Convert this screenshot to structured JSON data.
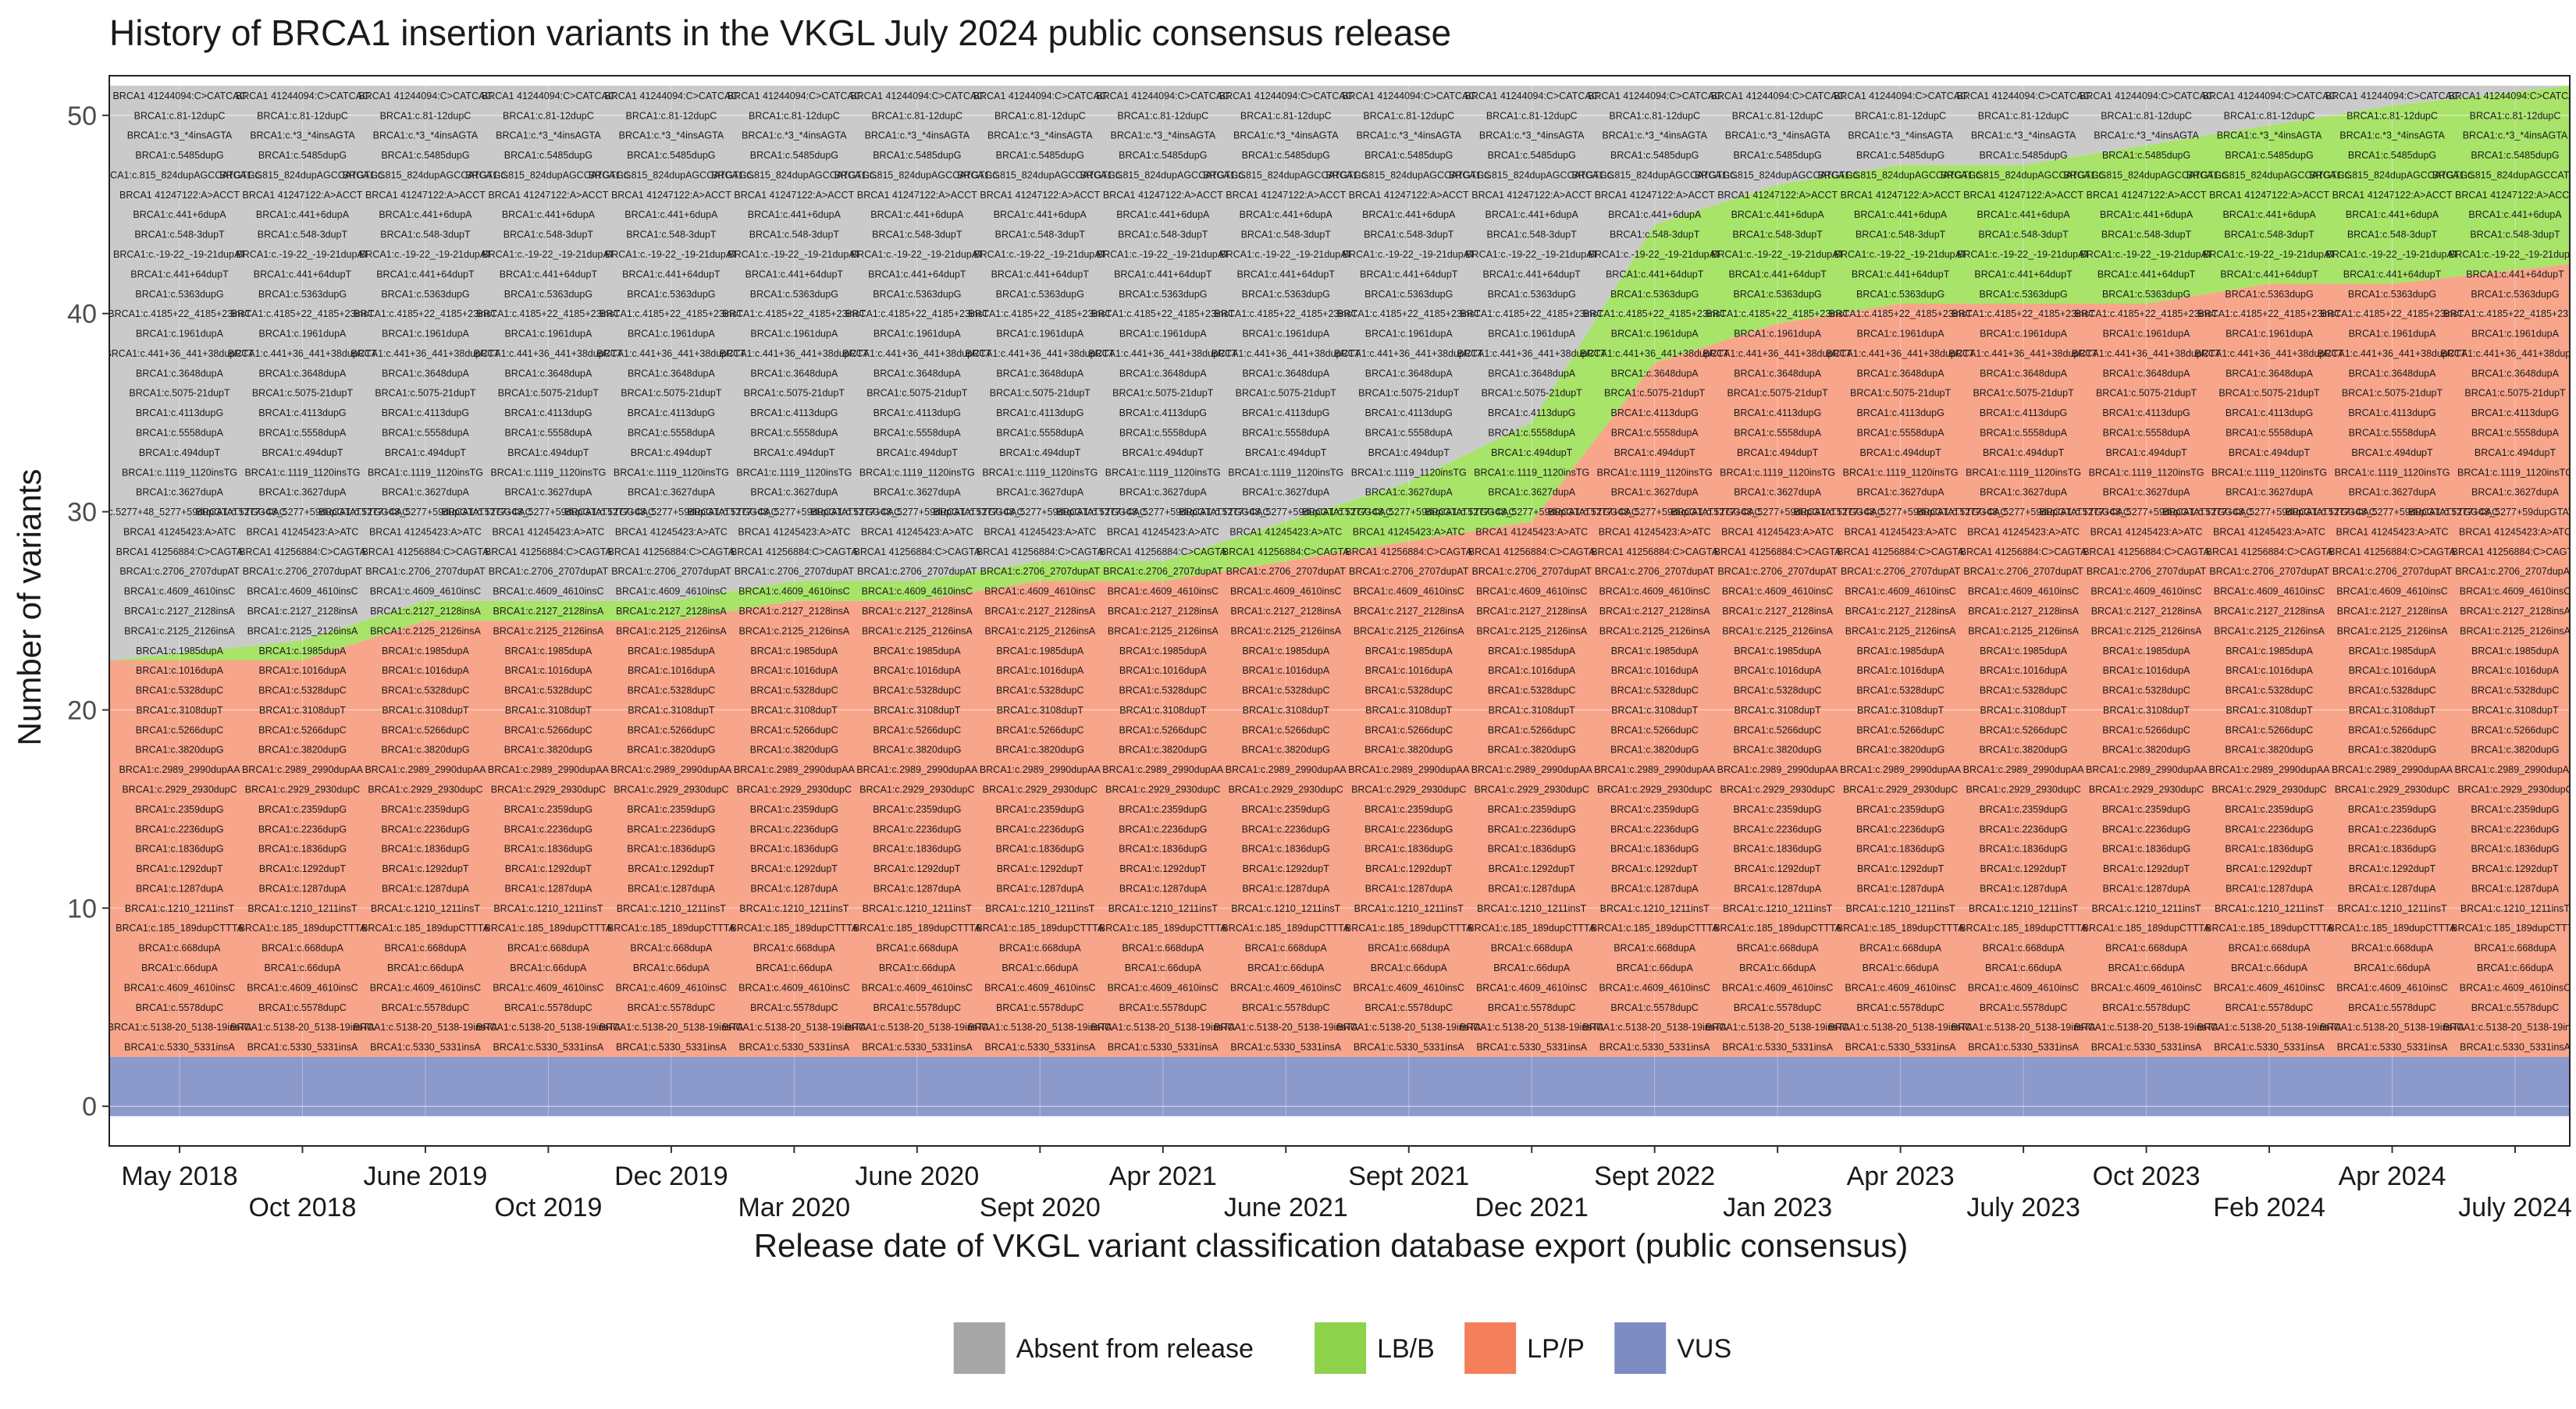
{
  "chart_data": {
    "type": "area",
    "title": "History of BRCA1 insertion variants in the VKGL July 2024 public consensus release",
    "xlabel": "Release date of VKGL variant classification database export (public consensus)",
    "ylabel": "Number of variants",
    "ylim": [
      -2,
      52
    ],
    "yticks": [
      0,
      10,
      20,
      30,
      40,
      50
    ],
    "grid": true,
    "legend_position": "bottom",
    "categories": [
      "May 2018",
      "Oct 2018",
      "June 2019",
      "Oct 2019",
      "Dec 2019",
      "Mar 2020",
      "June 2020",
      "Sept 2020",
      "Apr 2021",
      "June 2021",
      "Sept 2021",
      "Dec 2021",
      "Sept 2022",
      "Jan 2023",
      "Apr 2023",
      "July 2023",
      "Oct 2023",
      "Feb 2024",
      "Apr 2024",
      "July 2024"
    ],
    "legend": [
      {
        "name": "Absent from release",
        "color": "#A6A6A6"
      },
      {
        "name": "LB/B",
        "color": "#8ED14B"
      },
      {
        "name": "LP/P",
        "color": "#F47F5B"
      },
      {
        "name": "VUS",
        "color": "#7D8DC2"
      }
    ],
    "series_colors": {
      "absent": "#CACACA",
      "lbb": "#A8E36A",
      "lpp": "#F7A58B",
      "vus": "#8C9ACB"
    },
    "series": [
      {
        "name": "VUS",
        "values": [
          3,
          3,
          3,
          3,
          3,
          3,
          3,
          3,
          3,
          3,
          3,
          3,
          3,
          3,
          3,
          3,
          3,
          3,
          3,
          3
        ]
      },
      {
        "name": "LP/P",
        "values": [
          20,
          20,
          22,
          22,
          22,
          23,
          23,
          24,
          24,
          25,
          26,
          27,
          35,
          37,
          38,
          38,
          38,
          39,
          39,
          40
        ]
      },
      {
        "name": "LB/B",
        "values": [
          0,
          1,
          1,
          1,
          1,
          1,
          1,
          1,
          1,
          2,
          3,
          5,
          7,
          7,
          7,
          7,
          8,
          8,
          9,
          9
        ]
      },
      {
        "name": "Absent from release",
        "values": [
          29,
          28,
          26,
          26,
          26,
          25,
          25,
          24,
          24,
          22,
          20,
          17,
          7,
          5,
          4,
          4,
          3,
          2,
          1,
          0
        ]
      }
    ],
    "variant_rows": [
      {
        "y": 51,
        "label": "BRCA1 41244094:C>CATCAC"
      },
      {
        "y": 50,
        "label": "BRCA1:c.81-12dupC"
      },
      {
        "y": 49,
        "label": "BRCA1:c.*3_*4insAGTA"
      },
      {
        "y": 48,
        "label": "BRCA1:c.5485dupG"
      },
      {
        "y": 47,
        "label": "BRCA1:c.815_824dupAGCCATGTGG"
      },
      {
        "y": 46,
        "label": "BRCA1 41247122:A>ACCT"
      },
      {
        "y": 45,
        "label": "BRCA1:c.441+6dupA"
      },
      {
        "y": 44,
        "label": "BRCA1:c.548-3dupT"
      },
      {
        "y": 43,
        "label": "BRCA1:c.-19-22_-19-21dupAT"
      },
      {
        "y": 42,
        "label": "BRCA1:c.441+64dupT"
      },
      {
        "y": 41,
        "label": "BRCA1:c.5363dupG"
      },
      {
        "y": 40,
        "label": "BRCA1:c.4185+22_4185+23insT"
      },
      {
        "y": 39,
        "label": "BRCA1:c.1961dupA"
      },
      {
        "y": 38,
        "label": "BRCA1:c.441+36_441+38dupCTT"
      },
      {
        "y": 37,
        "label": "BRCA1:c.3648dupA"
      },
      {
        "y": 36,
        "label": "BRCA1:c.5075-21dupT"
      },
      {
        "y": 35,
        "label": "BRCA1:c.4113dupG"
      },
      {
        "y": 34,
        "label": "BRCA1:c.5558dupA"
      },
      {
        "y": 33,
        "label": "BRCA1:c.494dupT"
      },
      {
        "y": 32,
        "label": "BRCA1:c.1119_1120insTG"
      },
      {
        "y": 31,
        "label": "BRCA1:c.3627dupA"
      },
      {
        "y": 30,
        "label": "BRCA1:c.5277+48_5277+59dupGTATTTGGCAC"
      },
      {
        "y": 29,
        "label": "BRCA1 41245423:A>ATC"
      },
      {
        "y": 28,
        "label": "BRCA1 41256884:C>CAGTA"
      },
      {
        "y": 27,
        "label": "BRCA1:c.2706_2707dupAT"
      },
      {
        "y": 26,
        "label": "BRCA1:c.4609_4610insC"
      },
      {
        "y": 25,
        "label": "BRCA1:c.2127_2128insA"
      },
      {
        "y": 24,
        "label": "BRCA1:c.2125_2126insA"
      },
      {
        "y": 23,
        "label": "BRCA1:c.1985dupA"
      },
      {
        "y": 22,
        "label": "BRCA1:c.1016dupA"
      },
      {
        "y": 21,
        "label": "BRCA1:c.5328dupC"
      },
      {
        "y": 20,
        "label": "BRCA1:c.3108dupT"
      },
      {
        "y": 19,
        "label": "BRCA1:c.5266dupC"
      },
      {
        "y": 18,
        "label": "BRCA1:c.3820dupG"
      },
      {
        "y": 17,
        "label": "BRCA1:c.2989_2990dupAA"
      },
      {
        "y": 16,
        "label": "BRCA1:c.2929_2930dupC"
      },
      {
        "y": 15,
        "label": "BRCA1:c.2359dupG"
      },
      {
        "y": 14,
        "label": "BRCA1:c.2236dupG"
      },
      {
        "y": 13,
        "label": "BRCA1:c.1836dupG"
      },
      {
        "y": 12,
        "label": "BRCA1:c.1292dupT"
      },
      {
        "y": 11,
        "label": "BRCA1:c.1287dupA"
      },
      {
        "y": 10,
        "label": "BRCA1:c.1210_1211insT"
      },
      {
        "y": 9,
        "label": "BRCA1:c.185_189dupCTTTA"
      },
      {
        "y": 8,
        "label": "BRCA1:c.668dupA"
      },
      {
        "y": 7,
        "label": "BRCA1:c.66dupA"
      },
      {
        "y": 6,
        "label": "BRCA1:c.4609_4610insC"
      },
      {
        "y": 5,
        "label": "BRCA1:c.5578dupC"
      },
      {
        "y": 4,
        "label": "BRCA1:c.5138-20_5138-19insTA"
      },
      {
        "y": 3,
        "label": "BRCA1:c.5330_5331insA"
      }
    ]
  }
}
